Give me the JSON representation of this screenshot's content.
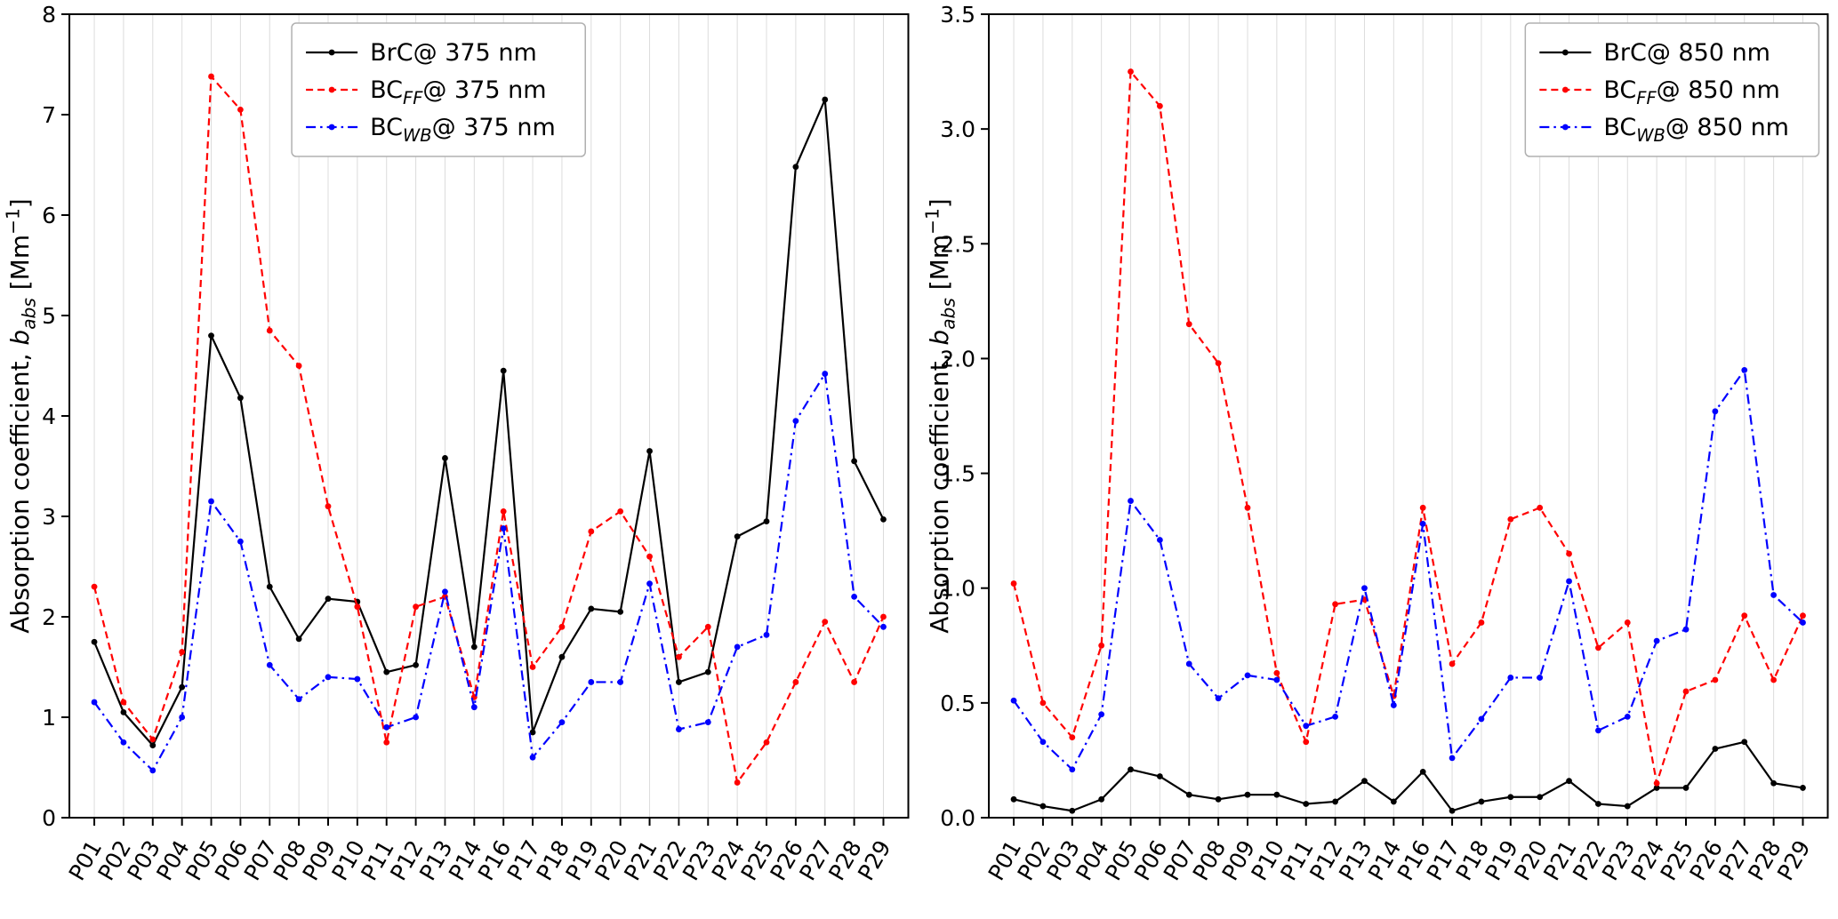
{
  "figure": {
    "background": "#ffffff",
    "text_color": "#000000",
    "grid_color": "#dcdcdc",
    "spine_color": "#000000"
  },
  "chart_data": [
    {
      "type": "line",
      "title": "",
      "xlabel": "",
      "ylabel": "Absorption coefficient, b_abs  [Mm−1]",
      "ylabel_segments": [
        {
          "t": "Absorption coefficient, "
        },
        {
          "t": "b",
          "i": true
        },
        {
          "t": "abs",
          "i": true,
          "sub": true
        },
        {
          "t": "  [Mm"
        },
        {
          "t": "−1",
          "sup": true
        },
        {
          "t": "]"
        }
      ],
      "ylim": [
        0,
        8
      ],
      "yticks": [
        0,
        1,
        2,
        3,
        4,
        5,
        6,
        7,
        8
      ],
      "ytick_labels": [
        "0",
        "1",
        "2",
        "3",
        "4",
        "5",
        "6",
        "7",
        "8"
      ],
      "grid": "vertical",
      "xtick_rotation": 60,
      "legend_position": "upper center",
      "categories": [
        "P01",
        "P02",
        "P03",
        "P04",
        "P05",
        "P06",
        "P07",
        "P08",
        "P09",
        "P10",
        "P11",
        "P12",
        "P13",
        "P14",
        "P16",
        "P17",
        "P18",
        "P19",
        "P20",
        "P21",
        "P22",
        "P23",
        "P24",
        "P25",
        "P26",
        "P27",
        "P28",
        "P29"
      ],
      "series": [
        {
          "name": "BrC@ 375 nm",
          "label_segments": [
            {
              "t": "BrC@ 375 nm"
            }
          ],
          "color": "#000000",
          "linestyle": "solid",
          "marker": "dot",
          "values": [
            1.75,
            1.05,
            0.72,
            1.3,
            4.8,
            4.18,
            2.3,
            1.78,
            2.18,
            2.15,
            1.45,
            1.52,
            3.58,
            1.7,
            4.45,
            0.85,
            1.6,
            2.08,
            2.05,
            3.65,
            1.35,
            1.45,
            2.8,
            2.95,
            6.48,
            7.15,
            3.55,
            2.97
          ]
        },
        {
          "name": "BCFF@ 375 nm",
          "label_segments": [
            {
              "t": "BC"
            },
            {
              "t": "FF",
              "i": true,
              "sub": true
            },
            {
              "t": "@ 375 nm"
            }
          ],
          "color": "#ff0000",
          "linestyle": "dashed",
          "marker": "dot",
          "values": [
            2.3,
            1.15,
            0.78,
            1.65,
            7.38,
            7.05,
            4.85,
            4.5,
            3.1,
            2.1,
            0.75,
            2.1,
            2.2,
            1.2,
            3.05,
            1.5,
            1.9,
            2.85,
            3.05,
            2.6,
            1.6,
            1.9,
            0.35,
            0.75,
            1.35,
            1.95,
            1.35,
            2.0
          ]
        },
        {
          "name": "BCWB@ 375 nm",
          "label_segments": [
            {
              "t": "BC"
            },
            {
              "t": "WB",
              "i": true,
              "sub": true
            },
            {
              "t": "@ 375 nm"
            }
          ],
          "color": "#0000ff",
          "linestyle": "dashdot",
          "marker": "dot",
          "values": [
            1.15,
            0.75,
            0.47,
            1.0,
            3.15,
            2.75,
            1.52,
            1.18,
            1.4,
            1.38,
            0.9,
            1.0,
            2.25,
            1.1,
            2.88,
            0.6,
            0.95,
            1.35,
            1.35,
            2.33,
            0.88,
            0.95,
            1.7,
            1.82,
            3.95,
            4.42,
            2.2,
            1.9
          ]
        }
      ]
    },
    {
      "type": "line",
      "title": "",
      "xlabel": "",
      "ylabel": "Absorption coefficient, b_abs  [Mm−1]",
      "ylabel_segments": [
        {
          "t": "Absorption coefficient, "
        },
        {
          "t": "b",
          "i": true
        },
        {
          "t": "abs",
          "i": true,
          "sub": true
        },
        {
          "t": "  [Mm"
        },
        {
          "t": "−1",
          "sup": true
        },
        {
          "t": "]"
        }
      ],
      "ylim": [
        0,
        3.5
      ],
      "yticks": [
        0,
        0.5,
        1.0,
        1.5,
        2.0,
        2.5,
        3.0,
        3.5
      ],
      "ytick_labels": [
        "0.0",
        "0.5",
        "1.0",
        "1.5",
        "2.0",
        "2.5",
        "3.0",
        "3.5"
      ],
      "grid": "vertical",
      "xtick_rotation": 60,
      "legend_position": "upper right",
      "categories": [
        "P01",
        "P02",
        "P03",
        "P04",
        "P05",
        "P06",
        "P07",
        "P08",
        "P09",
        "P10",
        "P11",
        "P12",
        "P13",
        "P14",
        "P16",
        "P17",
        "P18",
        "P19",
        "P20",
        "P21",
        "P22",
        "P23",
        "P24",
        "P25",
        "P26",
        "P27",
        "P28",
        "P29"
      ],
      "series": [
        {
          "name": "BrC@ 850 nm",
          "label_segments": [
            {
              "t": "BrC@ 850 nm"
            }
          ],
          "color": "#000000",
          "linestyle": "solid",
          "marker": "dot",
          "values": [
            0.08,
            0.05,
            0.03,
            0.08,
            0.21,
            0.18,
            0.1,
            0.08,
            0.1,
            0.1,
            0.06,
            0.07,
            0.16,
            0.07,
            0.2,
            0.03,
            0.07,
            0.09,
            0.09,
            0.16,
            0.06,
            0.05,
            0.13,
            0.13,
            0.3,
            0.33,
            0.15,
            0.13
          ]
        },
        {
          "name": "BCFF@ 850 nm",
          "label_segments": [
            {
              "t": "BC"
            },
            {
              "t": "FF",
              "i": true,
              "sub": true
            },
            {
              "t": "@ 850 nm"
            }
          ],
          "color": "#ff0000",
          "linestyle": "dashed",
          "marker": "dot",
          "values": [
            1.02,
            0.5,
            0.35,
            0.75,
            3.25,
            3.1,
            2.15,
            1.98,
            1.35,
            0.63,
            0.33,
            0.93,
            0.95,
            0.53,
            1.35,
            0.67,
            0.85,
            1.3,
            1.35,
            1.15,
            0.74,
            0.85,
            0.15,
            0.55,
            0.6,
            0.88,
            0.6,
            0.88
          ]
        },
        {
          "name": "BCWB@ 850 nm",
          "label_segments": [
            {
              "t": "BC"
            },
            {
              "t": "WB",
              "i": true,
              "sub": true
            },
            {
              "t": "@ 850 nm"
            }
          ],
          "color": "#0000ff",
          "linestyle": "dashdot",
          "marker": "dot",
          "values": [
            0.51,
            0.33,
            0.21,
            0.45,
            1.38,
            1.21,
            0.67,
            0.52,
            0.62,
            0.6,
            0.4,
            0.44,
            1.0,
            0.49,
            1.28,
            0.26,
            0.43,
            0.61,
            0.61,
            1.03,
            0.38,
            0.44,
            0.77,
            0.82,
            1.77,
            1.95,
            0.97,
            0.85
          ]
        }
      ]
    }
  ]
}
